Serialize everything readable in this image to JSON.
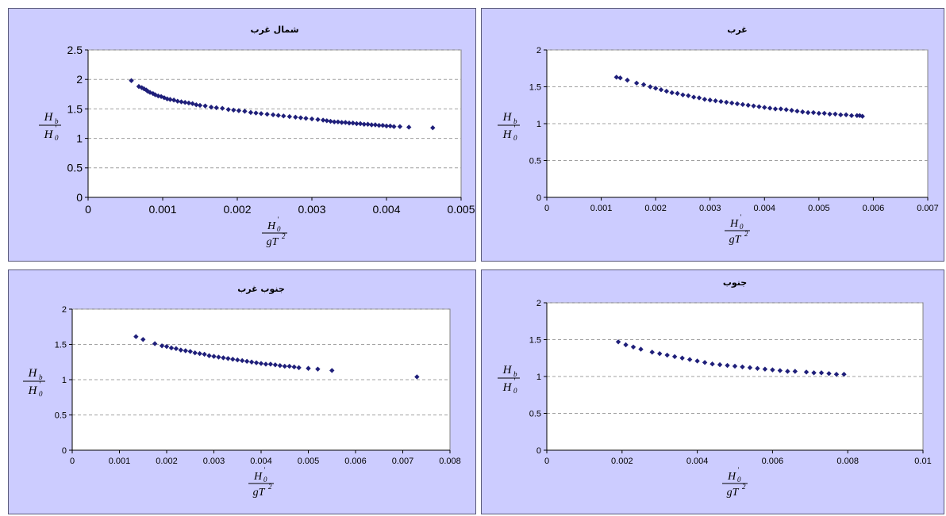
{
  "chart_data": [
    {
      "type": "scatter",
      "title": "شمال غرب",
      "xlabel": {
        "num": "H",
        "num_sub": "0",
        "num_prime": "'",
        "den": "gT",
        "den_sup": "2"
      },
      "ylabel": {
        "num": "H",
        "num_sub": "b",
        "den": "H",
        "den_sub": "0",
        "den_prime": "'"
      },
      "xlim": [
        0,
        0.005
      ],
      "ylim": [
        0,
        2.5
      ],
      "x_ticks": [
        "0",
        "0.001",
        "0.002",
        "0.003",
        "0.004",
        "0.005"
      ],
      "y_ticks": [
        "0",
        "0.5",
        "1",
        "1.5",
        "2",
        "2.5"
      ],
      "grid": true,
      "points": [
        [
          0.00058,
          1.98
        ],
        [
          0.00068,
          1.88
        ],
        [
          0.00072,
          1.86
        ],
        [
          0.00075,
          1.84
        ],
        [
          0.00078,
          1.82
        ],
        [
          0.0008,
          1.8
        ],
        [
          0.00083,
          1.78
        ],
        [
          0.00087,
          1.76
        ],
        [
          0.0009,
          1.74
        ],
        [
          0.00094,
          1.72
        ],
        [
          0.00098,
          1.71
        ],
        [
          0.00102,
          1.69
        ],
        [
          0.00106,
          1.67
        ],
        [
          0.0011,
          1.66
        ],
        [
          0.00115,
          1.65
        ],
        [
          0.0012,
          1.63
        ],
        [
          0.00125,
          1.62
        ],
        [
          0.0013,
          1.61
        ],
        [
          0.00135,
          1.6
        ],
        [
          0.0014,
          1.59
        ],
        [
          0.00145,
          1.57
        ],
        [
          0.0015,
          1.56
        ],
        [
          0.00157,
          1.55
        ],
        [
          0.00165,
          1.53
        ],
        [
          0.00172,
          1.52
        ],
        [
          0.0018,
          1.51
        ],
        [
          0.00188,
          1.49
        ],
        [
          0.00195,
          1.48
        ],
        [
          0.00202,
          1.47
        ],
        [
          0.0021,
          1.46
        ],
        [
          0.00218,
          1.44
        ],
        [
          0.00225,
          1.43
        ],
        [
          0.00232,
          1.42
        ],
        [
          0.0024,
          1.41
        ],
        [
          0.00248,
          1.4
        ],
        [
          0.00255,
          1.39
        ],
        [
          0.00262,
          1.38
        ],
        [
          0.0027,
          1.37
        ],
        [
          0.00278,
          1.36
        ],
        [
          0.00285,
          1.35
        ],
        [
          0.00292,
          1.34
        ],
        [
          0.003,
          1.33
        ],
        [
          0.00308,
          1.32
        ],
        [
          0.00315,
          1.31
        ],
        [
          0.0032,
          1.3
        ],
        [
          0.00325,
          1.29
        ],
        [
          0.0033,
          1.28
        ],
        [
          0.00335,
          1.28
        ],
        [
          0.0034,
          1.27
        ],
        [
          0.00345,
          1.27
        ],
        [
          0.0035,
          1.26
        ],
        [
          0.00355,
          1.26
        ],
        [
          0.0036,
          1.25
        ],
        [
          0.00365,
          1.25
        ],
        [
          0.0037,
          1.24
        ],
        [
          0.00375,
          1.24
        ],
        [
          0.0038,
          1.23
        ],
        [
          0.00385,
          1.23
        ],
        [
          0.0039,
          1.22
        ],
        [
          0.00395,
          1.22
        ],
        [
          0.004,
          1.21
        ],
        [
          0.00405,
          1.21
        ],
        [
          0.0041,
          1.2
        ],
        [
          0.00418,
          1.2
        ],
        [
          0.0043,
          1.19
        ],
        [
          0.00462,
          1.18
        ]
      ]
    },
    {
      "type": "scatter",
      "title": "غرب",
      "xlabel": {
        "num": "H",
        "num_sub": "0",
        "num_prime": "'",
        "den": "gT",
        "den_sup": "2"
      },
      "ylabel": {
        "num": "H",
        "num_sub": "b",
        "den": "H",
        "den_sub": "0",
        "den_prime": "'"
      },
      "xlim": [
        0,
        0.007
      ],
      "ylim": [
        0,
        2
      ],
      "x_ticks": [
        "0",
        "0.001",
        "0.002",
        "0.003",
        "0.004",
        "0.005",
        "0.006",
        "0.007"
      ],
      "y_ticks": [
        "0",
        "0.5",
        "1",
        "1.5",
        "2"
      ],
      "grid": true,
      "points": [
        [
          0.00128,
          1.63
        ],
        [
          0.00135,
          1.62
        ],
        [
          0.00148,
          1.59
        ],
        [
          0.00165,
          1.55
        ],
        [
          0.00178,
          1.53
        ],
        [
          0.0019,
          1.5
        ],
        [
          0.002,
          1.48
        ],
        [
          0.0021,
          1.46
        ],
        [
          0.0022,
          1.44
        ],
        [
          0.0023,
          1.42
        ],
        [
          0.0024,
          1.41
        ],
        [
          0.0025,
          1.39
        ],
        [
          0.0026,
          1.38
        ],
        [
          0.0027,
          1.36
        ],
        [
          0.0028,
          1.35
        ],
        [
          0.0029,
          1.33
        ],
        [
          0.003,
          1.32
        ],
        [
          0.0031,
          1.31
        ],
        [
          0.0032,
          1.3
        ],
        [
          0.0033,
          1.29
        ],
        [
          0.0034,
          1.28
        ],
        [
          0.0035,
          1.27
        ],
        [
          0.0036,
          1.26
        ],
        [
          0.0037,
          1.25
        ],
        [
          0.0038,
          1.24
        ],
        [
          0.0039,
          1.23
        ],
        [
          0.004,
          1.22
        ],
        [
          0.0041,
          1.21
        ],
        [
          0.0042,
          1.2
        ],
        [
          0.0043,
          1.2
        ],
        [
          0.0044,
          1.19
        ],
        [
          0.0045,
          1.18
        ],
        [
          0.0046,
          1.17
        ],
        [
          0.0047,
          1.16
        ],
        [
          0.0048,
          1.15
        ],
        [
          0.0049,
          1.15
        ],
        [
          0.005,
          1.14
        ],
        [
          0.0051,
          1.14
        ],
        [
          0.0052,
          1.13
        ],
        [
          0.0053,
          1.13
        ],
        [
          0.0054,
          1.12
        ],
        [
          0.0055,
          1.12
        ],
        [
          0.0056,
          1.11
        ],
        [
          0.0057,
          1.11
        ],
        [
          0.00575,
          1.11
        ],
        [
          0.0058,
          1.1
        ]
      ]
    },
    {
      "type": "scatter",
      "title": "جنوب غرب",
      "xlabel": {
        "num": "H",
        "num_sub": "0",
        "num_prime": "'",
        "den": "gT",
        "den_sup": "2"
      },
      "ylabel": {
        "num": "H",
        "num_sub": "b",
        "den": "H",
        "den_sub": "0",
        "den_prime": "'"
      },
      "xlim": [
        0,
        0.008
      ],
      "ylim": [
        0,
        2
      ],
      "x_ticks": [
        "0",
        "0.001",
        "0.002",
        "0.003",
        "0.004",
        "0.005",
        "0.006",
        "0.007",
        "0.008"
      ],
      "y_ticks": [
        "0",
        "0.5",
        "1",
        "1.5",
        "2"
      ],
      "grid": true,
      "points": [
        [
          0.00135,
          1.61
        ],
        [
          0.0015,
          1.57
        ],
        [
          0.00175,
          1.51
        ],
        [
          0.0019,
          1.48
        ],
        [
          0.002,
          1.47
        ],
        [
          0.0021,
          1.45
        ],
        [
          0.0022,
          1.44
        ],
        [
          0.0023,
          1.42
        ],
        [
          0.0024,
          1.41
        ],
        [
          0.0025,
          1.4
        ],
        [
          0.0026,
          1.38
        ],
        [
          0.0027,
          1.37
        ],
        [
          0.0028,
          1.36
        ],
        [
          0.0029,
          1.34
        ],
        [
          0.003,
          1.33
        ],
        [
          0.0031,
          1.32
        ],
        [
          0.0032,
          1.31
        ],
        [
          0.0033,
          1.3
        ],
        [
          0.0034,
          1.29
        ],
        [
          0.0035,
          1.28
        ],
        [
          0.0036,
          1.27
        ],
        [
          0.0037,
          1.26
        ],
        [
          0.0038,
          1.25
        ],
        [
          0.0039,
          1.24
        ],
        [
          0.004,
          1.23
        ],
        [
          0.0041,
          1.22
        ],
        [
          0.0042,
          1.22
        ],
        [
          0.0043,
          1.21
        ],
        [
          0.0044,
          1.2
        ],
        [
          0.0045,
          1.19
        ],
        [
          0.0046,
          1.19
        ],
        [
          0.0047,
          1.18
        ],
        [
          0.0048,
          1.17
        ],
        [
          0.005,
          1.16
        ],
        [
          0.0052,
          1.15
        ],
        [
          0.0055,
          1.13
        ],
        [
          0.0073,
          1.04
        ]
      ]
    },
    {
      "type": "scatter",
      "title": "جنوب",
      "xlabel": {
        "num": "H",
        "num_sub": "0",
        "num_prime": "'",
        "den": "gT",
        "den_sup": "2"
      },
      "ylabel": {
        "num": "H",
        "num_sub": "b",
        "den": "H",
        "den_sub": "0",
        "den_prime": "'"
      },
      "xlim": [
        0,
        0.01
      ],
      "ylim": [
        0,
        2
      ],
      "x_ticks": [
        "0",
        "0.002",
        "0.004",
        "0.006",
        "0.008",
        "0.01"
      ],
      "y_ticks": [
        "0",
        "0.5",
        "1",
        "1.5",
        "2"
      ],
      "grid": true,
      "points": [
        [
          0.0019,
          1.47
        ],
        [
          0.0021,
          1.43
        ],
        [
          0.0023,
          1.4
        ],
        [
          0.0025,
          1.37
        ],
        [
          0.0028,
          1.33
        ],
        [
          0.003,
          1.31
        ],
        [
          0.0032,
          1.29
        ],
        [
          0.0034,
          1.27
        ],
        [
          0.0036,
          1.25
        ],
        [
          0.0038,
          1.23
        ],
        [
          0.004,
          1.21
        ],
        [
          0.0042,
          1.19
        ],
        [
          0.0044,
          1.17
        ],
        [
          0.0046,
          1.16
        ],
        [
          0.0048,
          1.15
        ],
        [
          0.005,
          1.14
        ],
        [
          0.0052,
          1.13
        ],
        [
          0.0054,
          1.12
        ],
        [
          0.0056,
          1.11
        ],
        [
          0.0058,
          1.1
        ],
        [
          0.006,
          1.09
        ],
        [
          0.0062,
          1.08
        ],
        [
          0.0064,
          1.07
        ],
        [
          0.0066,
          1.07
        ],
        [
          0.0069,
          1.06
        ],
        [
          0.0071,
          1.05
        ],
        [
          0.0073,
          1.05
        ],
        [
          0.0075,
          1.04
        ],
        [
          0.0077,
          1.03
        ],
        [
          0.0079,
          1.03
        ]
      ]
    }
  ]
}
